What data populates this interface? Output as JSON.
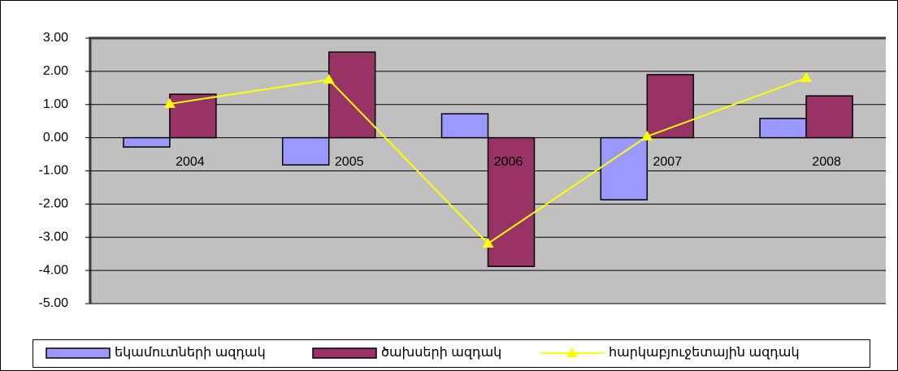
{
  "chart_data": {
    "type": "bar_line",
    "categories": [
      "2004",
      "2005",
      "2006",
      "2007",
      "2008"
    ],
    "series": [
      {
        "name": "եկամուտների ազդակ",
        "color": "#9999ff",
        "type": "bar",
        "values": [
          -0.28,
          -0.82,
          0.72,
          -1.87,
          0.58
        ]
      },
      {
        "name": "ծախսերի ազդակ",
        "color": "#993366",
        "type": "bar",
        "values": [
          1.31,
          2.58,
          -3.88,
          1.9,
          1.26
        ]
      },
      {
        "name": "հարկաբյուջետային ազդակ",
        "color": "#ffff00",
        "type": "line",
        "values": [
          1.02,
          1.75,
          -3.19,
          0.04,
          1.8
        ]
      }
    ],
    "ylim": [
      -5,
      3
    ],
    "yticks": [
      {
        "value": 3,
        "label": "3.00"
      },
      {
        "value": 2,
        "label": "2.00"
      },
      {
        "value": 1,
        "label": "1.00"
      },
      {
        "value": 0,
        "label": "0.00"
      },
      {
        "value": -1,
        "label": "-1.00"
      },
      {
        "value": -2,
        "label": "-2.00"
      },
      {
        "value": -3,
        "label": "-3.00"
      },
      {
        "value": -4,
        "label": "-4.00"
      },
      {
        "value": -5,
        "label": "-5.00"
      }
    ],
    "grid": true,
    "legend": "bottom"
  }
}
